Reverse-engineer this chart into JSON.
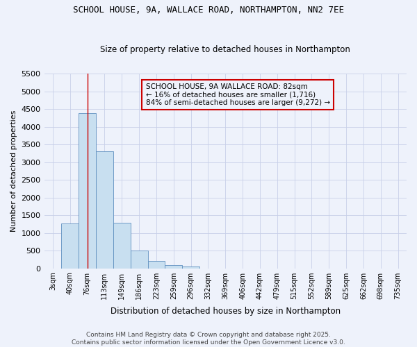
{
  "title": "SCHOOL HOUSE, 9A, WALLACE ROAD, NORTHAMPTON, NN2 7EE",
  "subtitle": "Size of property relative to detached houses in Northampton",
  "xlabel": "Distribution of detached houses by size in Northampton",
  "ylabel": "Number of detached properties",
  "categories": [
    "3sqm",
    "40sqm",
    "76sqm",
    "113sqm",
    "149sqm",
    "186sqm",
    "223sqm",
    "259sqm",
    "296sqm",
    "332sqm",
    "369sqm",
    "406sqm",
    "442sqm",
    "479sqm",
    "515sqm",
    "552sqm",
    "589sqm",
    "625sqm",
    "662sqm",
    "698sqm",
    "735sqm"
  ],
  "bar_values": [
    0,
    1270,
    4380,
    3310,
    1280,
    510,
    215,
    85,
    55,
    0,
    0,
    0,
    0,
    0,
    0,
    0,
    0,
    0,
    0,
    0,
    0
  ],
  "bar_color": "#c8dff0",
  "bar_edge_color": "#6090c0",
  "background_color": "#eef2fb",
  "grid_color": "#c8d0e8",
  "vline_color": "#cc0000",
  "annotation_text": "SCHOOL HOUSE, 9A WALLACE ROAD: 82sqm\n← 16% of detached houses are smaller (1,716)\n84% of semi-detached houses are larger (9,272) →",
  "annotation_box_color": "#cc0000",
  "ylim": [
    0,
    5500
  ],
  "yticks": [
    0,
    500,
    1000,
    1500,
    2000,
    2500,
    3000,
    3500,
    4000,
    4500,
    5000,
    5500
  ],
  "footer_line1": "Contains HM Land Registry data © Crown copyright and database right 2025.",
  "footer_line2": "Contains public sector information licensed under the Open Government Licence v3.0."
}
